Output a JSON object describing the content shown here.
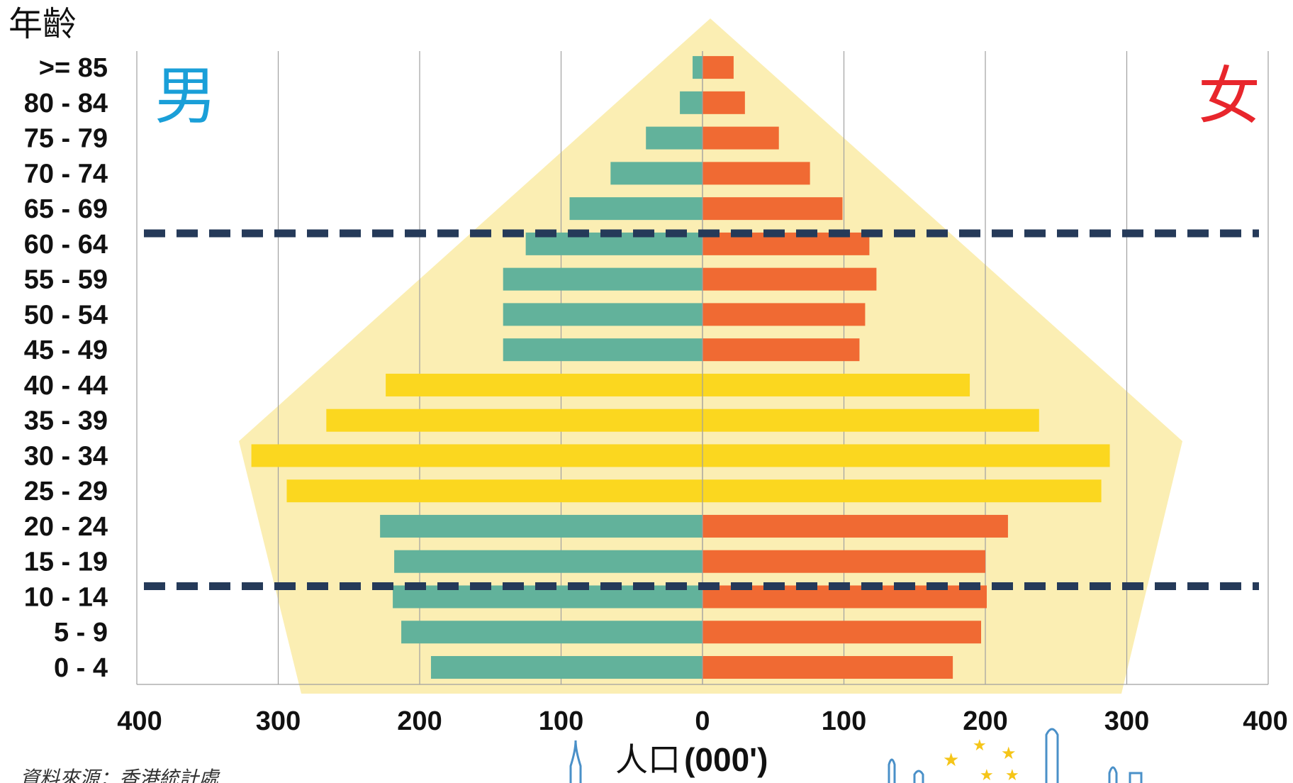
{
  "chart_data": {
    "type": "bar",
    "orientation": "horizontal",
    "layout": "population-pyramid",
    "ylabel": "年齡",
    "xlabel_prefix": "人口",
    "xlabel_unit": "(000')",
    "xlim": [
      -400,
      400
    ],
    "x_tick_labels": [
      "400",
      "300",
      "200",
      "100",
      "0",
      "100",
      "200",
      "300",
      "400"
    ],
    "x_tick_values": [
      -400,
      -300,
      -200,
      -100,
      0,
      100,
      200,
      300,
      400
    ],
    "grid": true,
    "side_labels": {
      "male": "男",
      "female": "女"
    },
    "categories": [
      "0 - 4",
      "5 - 9",
      "10 - 14",
      "15 - 19",
      "20 - 24",
      "25 - 29",
      "30 - 34",
      "35 - 39",
      "40 - 44",
      "45 - 49",
      "50 - 54",
      "55 - 59",
      "60 - 64",
      "65 - 69",
      "70 - 74",
      "75 - 79",
      "80 - 84",
      ">= 85"
    ],
    "series": [
      {
        "name": "男",
        "values": [
          192,
          213,
          219,
          218,
          228,
          294,
          319,
          266,
          224,
          141,
          141,
          141,
          125,
          94,
          65,
          40,
          16,
          7
        ]
      },
      {
        "name": "女",
        "values": [
          177,
          197,
          201,
          200,
          216,
          282,
          288,
          238,
          189,
          111,
          115,
          123,
          118,
          99,
          76,
          54,
          30,
          22
        ]
      }
    ],
    "highlight_groups": [
      "25 - 29",
      "30 - 34",
      "35 - 39",
      "40 - 44"
    ],
    "reference_lines": [
      {
        "between": [
          "15 - 19",
          "10 - 14"
        ],
        "style": "dashed"
      },
      {
        "between": [
          "65 - 69",
          "60 - 64"
        ],
        "style": "dashed"
      }
    ],
    "colors": {
      "male": "#62b29b",
      "female": "#f06a33",
      "highlight": "#fbd71f",
      "background_shape": "#fbeeb3",
      "reference_line": "#253a59",
      "grid": "#a0a0a0",
      "male_label": "#1a9fd8",
      "female_label": "#e8262c"
    }
  },
  "source_note": "資料來源：香港統計處"
}
